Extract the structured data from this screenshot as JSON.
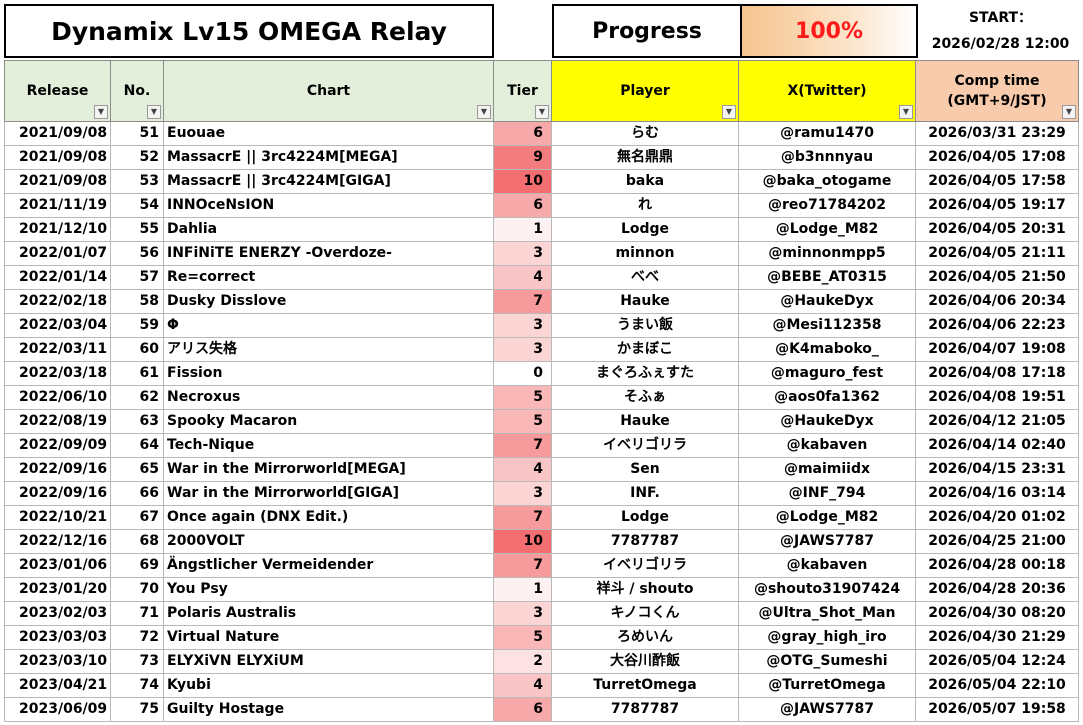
{
  "title": "Dynamix Lv15 OMEGA Relay",
  "progress": {
    "label": "Progress",
    "value": "100%"
  },
  "start": {
    "label": "START：",
    "value": "2026/02/28 12:00"
  },
  "columns": [
    "Release",
    "No.",
    "Chart",
    "Tier",
    "Player",
    "X(Twitter)",
    "Comp time",
    "(GMT+9/JST)"
  ],
  "colors": {
    "header_green": "#e3efda",
    "header_yellow": "#ffff00",
    "header_orange": "#f8cbad",
    "progress_red": "#ff1a1a"
  },
  "rows": [
    {
      "release": "2021/09/08",
      "no": "51",
      "chart": "Euouae",
      "tier": "6",
      "player": "らむ",
      "x": "@ramu1470",
      "comp": "2026/03/31 23:29"
    },
    {
      "release": "2021/09/08",
      "no": "52",
      "chart": "MassacrE || 3rc4224M[MEGA]",
      "tier": "9",
      "player": "無名鼎鼎",
      "x": "@b3nnnyau",
      "comp": "2026/04/05 17:08"
    },
    {
      "release": "2021/09/08",
      "no": "53",
      "chart": "MassacrE || 3rc4224M[GIGA]",
      "tier": "10",
      "player": "baka",
      "x": "@baka_otogame",
      "comp": "2026/04/05 17:58"
    },
    {
      "release": "2021/11/19",
      "no": "54",
      "chart": "INNOceNsION",
      "tier": "6",
      "player": "れ",
      "x": "@reo71784202",
      "comp": "2026/04/05 19:17"
    },
    {
      "release": "2021/12/10",
      "no": "55",
      "chart": "Dahlia",
      "tier": "1",
      "player": "Lodge",
      "x": "@Lodge_M82",
      "comp": "2026/04/05 20:31"
    },
    {
      "release": "2022/01/07",
      "no": "56",
      "chart": "INFiNiTE ENERZY -Overdoze-",
      "tier": "3",
      "player": "minnon",
      "x": "@minnonmpp5",
      "comp": "2026/04/05 21:11"
    },
    {
      "release": "2022/01/14",
      "no": "57",
      "chart": "Re=correct",
      "tier": "4",
      "player": "べべ",
      "x": "@BEBE_AT0315",
      "comp": "2026/04/05 21:50"
    },
    {
      "release": "2022/02/18",
      "no": "58",
      "chart": "Dusky Disslove",
      "tier": "7",
      "player": "Hauke",
      "x": "@HaukeDyx",
      "comp": "2026/04/06 20:34"
    },
    {
      "release": "2022/03/04",
      "no": "59",
      "chart": "Φ",
      "tier": "3",
      "player": "うまい飯",
      "x": "@Mesi112358",
      "comp": "2026/04/06 22:23"
    },
    {
      "release": "2022/03/11",
      "no": "60",
      "chart": "アリス失格",
      "tier": "3",
      "player": "かまぼこ",
      "x": "@K4maboko_",
      "comp": "2026/04/07 19:08"
    },
    {
      "release": "2022/03/18",
      "no": "61",
      "chart": "Fission",
      "tier": "0",
      "player": "まぐろふぇすた",
      "x": "@maguro_fest",
      "comp": "2026/04/08 17:18"
    },
    {
      "release": "2022/06/10",
      "no": "62",
      "chart": "Necroxus",
      "tier": "5",
      "player": "そふぁ",
      "x": "@aos0fa1362",
      "comp": "2026/04/08 19:51"
    },
    {
      "release": "2022/08/19",
      "no": "63",
      "chart": "Spooky Macaron",
      "tier": "5",
      "player": "Hauke",
      "x": "@HaukeDyx",
      "comp": "2026/04/12 21:05"
    },
    {
      "release": "2022/09/09",
      "no": "64",
      "chart": "Tech-Nique",
      "tier": "7",
      "player": "イベリゴリラ",
      "x": "@kabaven",
      "comp": "2026/04/14 02:40"
    },
    {
      "release": "2022/09/16",
      "no": "65",
      "chart": "War in the Mirrorworld[MEGA]",
      "tier": "4",
      "player": "Sen",
      "x": "@maimiidx",
      "comp": "2026/04/15 23:31"
    },
    {
      "release": "2022/09/16",
      "no": "66",
      "chart": "War in the Mirrorworld[GIGA]",
      "tier": "3",
      "player": "INF.",
      "x": "@INF_794",
      "comp": "2026/04/16 03:14"
    },
    {
      "release": "2022/10/21",
      "no": "67",
      "chart": "Once again (DNX Edit.)",
      "tier": "7",
      "player": "Lodge",
      "x": "@Lodge_M82",
      "comp": "2026/04/20 01:02"
    },
    {
      "release": "2022/12/16",
      "no": "68",
      "chart": "2000VOLT",
      "tier": "10",
      "player": "7787787",
      "x": "@JAWS7787",
      "comp": "2026/04/25 21:00"
    },
    {
      "release": "2023/01/06",
      "no": "69",
      "chart": "Ängstlicher Vermeidender",
      "tier": "7",
      "player": "イベリゴリラ",
      "x": "@kabaven",
      "comp": "2026/04/28 00:18"
    },
    {
      "release": "2023/01/20",
      "no": "70",
      "chart": "You Psy",
      "tier": "1",
      "player": "祥斗 / shouto",
      "x": "@shouto31907424",
      "comp": "2026/04/28 20:36"
    },
    {
      "release": "2023/02/03",
      "no": "71",
      "chart": "Polaris Australis",
      "tier": "3",
      "player": "キノコくん",
      "x": "@Ultra_Shot_Man",
      "comp": "2026/04/30 08:20"
    },
    {
      "release": "2023/03/03",
      "no": "72",
      "chart": "Virtual Nature",
      "tier": "5",
      "player": "ろめいん",
      "x": "@gray_high_iro",
      "comp": "2026/04/30 21:29"
    },
    {
      "release": "2023/03/10",
      "no": "73",
      "chart": "ELYXiVN ELYXiUM",
      "tier": "2",
      "player": "大谷川酢飯",
      "x": "@OTG_Sumeshi",
      "comp": "2026/05/04 12:24"
    },
    {
      "release": "2023/04/21",
      "no": "74",
      "chart": "Kyubi",
      "tier": "4",
      "player": "TurretOmega",
      "x": "@TurretOmega",
      "comp": "2026/05/04 22:10"
    },
    {
      "release": "2023/06/09",
      "no": "75",
      "chart": "Guilty Hostage",
      "tier": "6",
      "player": "7787787",
      "x": "@JAWS7787",
      "comp": "2026/05/07 19:58"
    }
  ]
}
